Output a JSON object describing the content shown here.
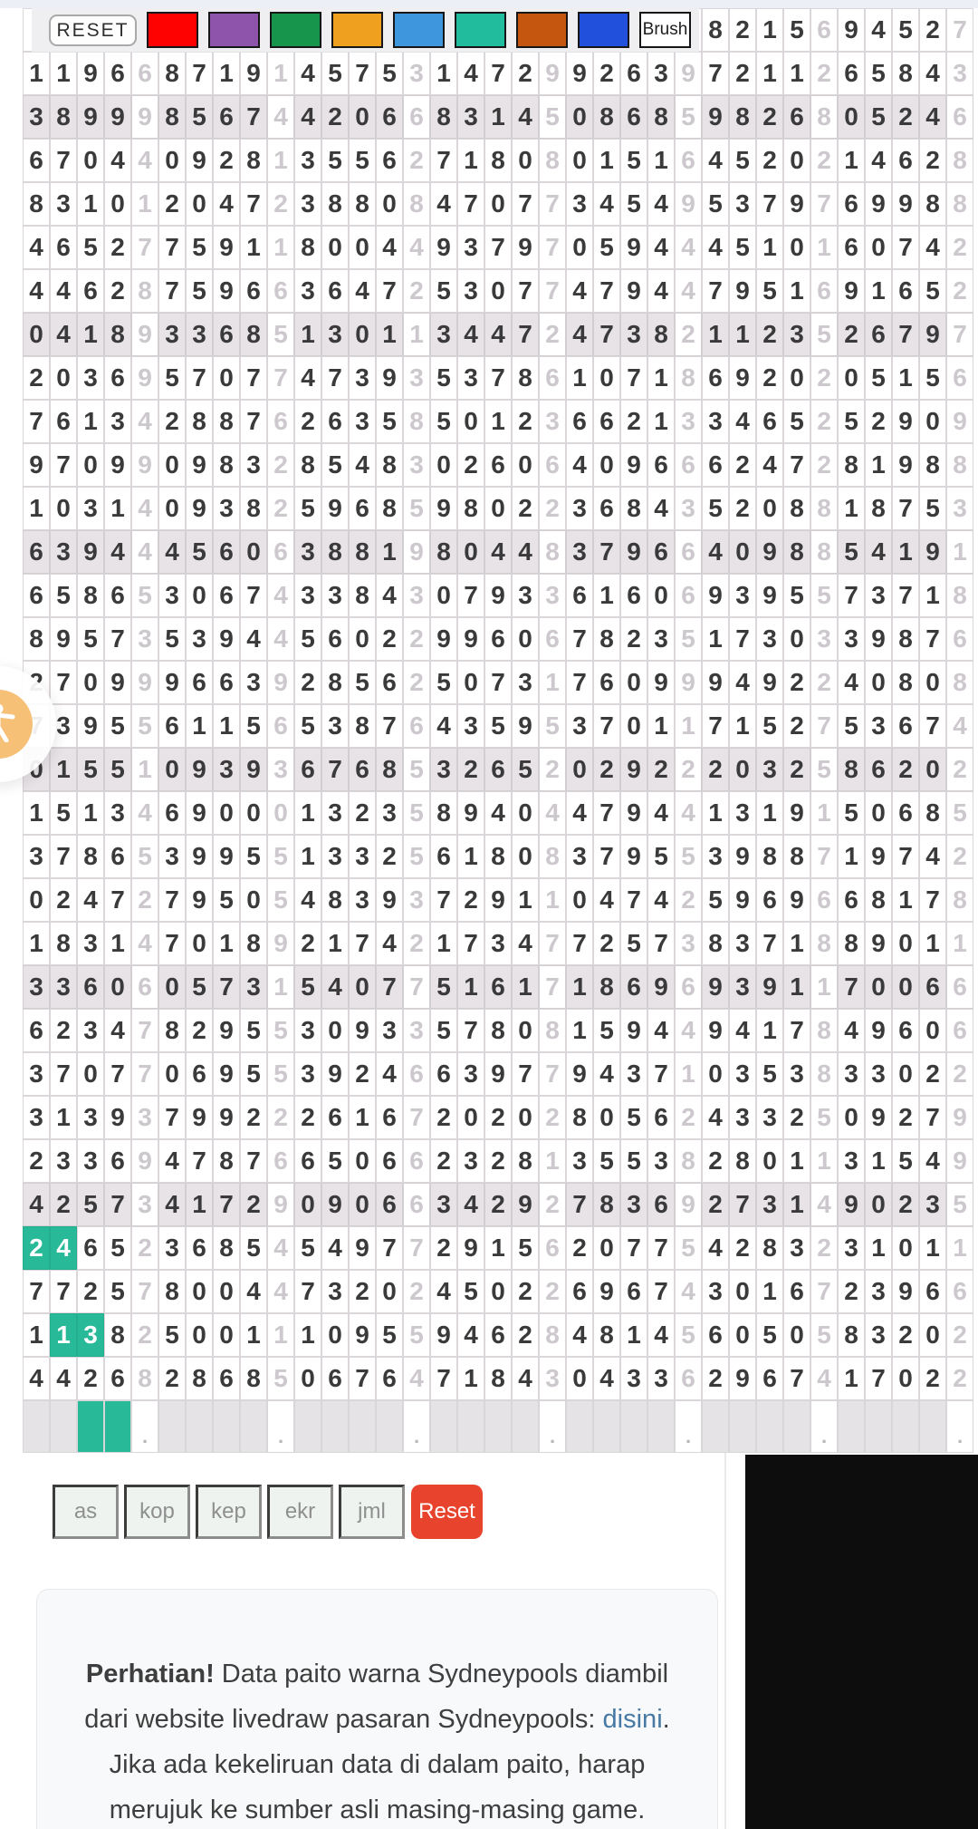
{
  "toolbar": {
    "reset_label": "RESET",
    "brush_label": "Brush",
    "colors": [
      {
        "name": "red",
        "hex": "#fe0101"
      },
      {
        "name": "purple",
        "hex": "#8e54ac"
      },
      {
        "name": "green",
        "hex": "#17954d"
      },
      {
        "name": "orange",
        "hex": "#efa01f"
      },
      {
        "name": "blue",
        "hex": "#3e97dc"
      },
      {
        "name": "teal",
        "hex": "#21bc9e"
      },
      {
        "name": "rust",
        "hex": "#c5560f"
      },
      {
        "name": "royal-blue",
        "hex": "#2151dc"
      }
    ]
  },
  "grid": {
    "columns": 35,
    "group_size": 5,
    "rows": [
      "                         8215694527",
      "11966871914575314729926397211265843",
      "38999856744206683145086859826805246",
      "67044092813556271808015164520214628",
      "83101204723880847077345495379769988",
      "46527759118004493797059444510160742",
      "44628759663647253077479447951691652",
      "04189336851301134472473821123526797",
      "20369570774739353786107186920205156",
      "76134288762635850123662133465252909",
      "97099098328548302606409666247281988",
      "10314093825968598022368435208818753",
      "63944456063881980448379664098854191",
      "65865306743384307933616069395573718",
      "89573539445602299606782351730339876",
      "27099966392856250731760999492240808",
      "73955611565387643595370117152753674",
      "01551093936768532652029222032586202",
      "15134690001323589404479441319150685",
      "37865399551332561808379553988719742",
      "02472795054839372911047425969668178",
      "18314701892174217347725738371889011",
      "33606057315407751617186969391170066",
      "62347829553093357808159449417849606",
      "37077069553924663977943710353833022",
      "31393799222616720202805624332509279",
      "23369478766506623281355382801131549",
      "42573417290906634292783692731490235",
      "24652368545497729156207754283231011",
      "77257800447320245022696743016723966",
      "11382500111095594628481456050583202",
      "44268286850676471843043362967417022"
    ],
    "alt_row_indices": [
      2,
      7,
      12,
      17,
      22,
      27
    ],
    "teal_cells": [
      [
        28,
        0
      ],
      [
        28,
        1
      ],
      [
        30,
        1
      ],
      [
        30,
        2
      ]
    ],
    "footer": {
      "teal_cols": [
        2,
        3
      ],
      "dot": ".",
      "dot_cols": [
        4,
        9,
        14,
        19,
        24,
        29,
        34
      ]
    },
    "highlight_color": "#28b998",
    "alt_row_color": "#e7e3e7"
  },
  "actions": {
    "buttons": [
      "as",
      "kop",
      "kep",
      "ekr",
      "jml"
    ],
    "reset_label": "Reset"
  },
  "notice": {
    "bold": "Perhatian!",
    "before_link": " Data paito warna Sydneypools diambil dari website livedraw pasaran Sydneypools: ",
    "link_label": "disini",
    "after_link": ". Jika ada kekeliruan data di dalam paito, harap merujuk ke sumber asli masing-masing game."
  }
}
